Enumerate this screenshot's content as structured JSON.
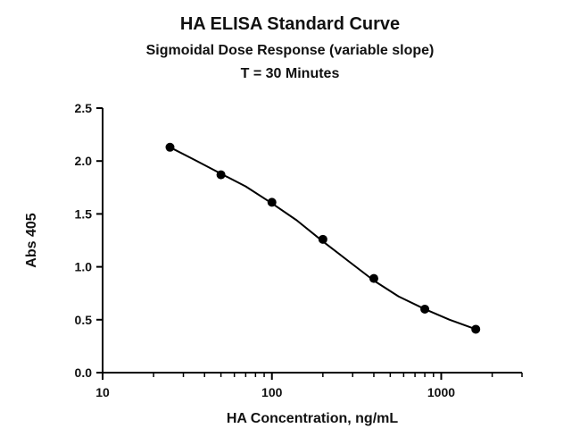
{
  "chart_data": {
    "type": "scatter",
    "title": "HA ELISA Standard Curve",
    "subtitle": "Sigmoidal Dose Response (variable slope)",
    "subtitle2": "T = 30 Minutes",
    "xlabel": "HA Concentration, ng/mL",
    "ylabel": "Abs 405",
    "xscale": "log",
    "xlim": [
      10,
      3000
    ],
    "ylim": [
      0,
      2.5
    ],
    "xticks": [
      10,
      100,
      1000
    ],
    "xtick_labels": [
      "10",
      "100",
      "1000"
    ],
    "yticks": [
      0,
      0.5,
      1,
      1.5,
      2,
      2.5
    ],
    "ytick_labels": [
      "0.0",
      "0.5",
      "1.0",
      "1.5",
      "2.0",
      "2.5"
    ],
    "grid": false,
    "legend": "none",
    "color": "#000000",
    "series": [
      {
        "x": [
          25,
          50,
          100,
          200,
          400,
          800,
          1600
        ],
        "y": [
          2.13,
          1.87,
          1.61,
          1.26,
          0.89,
          0.6,
          0.41
        ]
      }
    ],
    "fit_curve": {
      "x": [
        25,
        35,
        50,
        70,
        100,
        140,
        200,
        280,
        400,
        560,
        800,
        1120,
        1600
      ],
      "y": [
        2.13,
        2.01,
        1.88,
        1.76,
        1.6,
        1.44,
        1.24,
        1.06,
        0.87,
        0.72,
        0.6,
        0.5,
        0.41
      ]
    }
  }
}
